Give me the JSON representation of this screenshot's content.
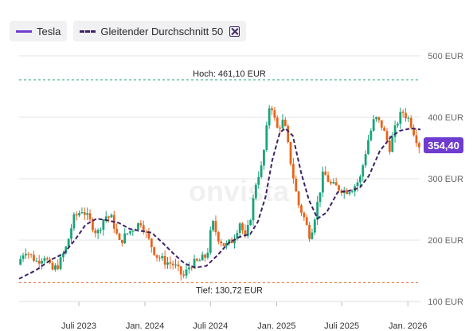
{
  "legend": {
    "series_label": "Tesla",
    "ma_label": "Gleitender Durchschnitt 50"
  },
  "watermark": "onvista",
  "price_badge": "354,40",
  "colors": {
    "up": "#1aa37a",
    "down": "#e8641b",
    "line": "#6e3ccf",
    "ma": "#3d2266",
    "high": "#1aa37a",
    "low": "#e8641b",
    "badge": "#6e3ccf"
  },
  "chart_data": {
    "type": "candlestick",
    "title": "",
    "y_unit": "EUR",
    "ylim": [
      100,
      500
    ],
    "y_ticks": [
      {
        "value": 500,
        "label": "500 EUR"
      },
      {
        "value": 400,
        "label": "400 EUR"
      },
      {
        "value": 300,
        "label": "300 EUR"
      },
      {
        "value": 200,
        "label": "200 EUR"
      },
      {
        "value": 100,
        "label": "100 EUR"
      }
    ],
    "xlim": [
      "2023-01-16",
      "2026-02-05"
    ],
    "x_ticks": [
      {
        "date": "2023-07-01",
        "label": "Juli 2023"
      },
      {
        "date": "2024-01-01",
        "label": "Jan. 2024"
      },
      {
        "date": "2024-07-01",
        "label": "Juli 2024"
      },
      {
        "date": "2025-01-01",
        "label": "Jan. 2025"
      },
      {
        "date": "2025-07-01",
        "label": "Juli 2025"
      },
      {
        "date": "2026-01-01",
        "label": "Jan. 2026"
      }
    ],
    "high": {
      "value": 461.1,
      "label": "Hoch: 461,10 EUR"
    },
    "low": {
      "value": 130.72,
      "label": "Tief: 130,72 EUR"
    },
    "last": 354.4,
    "price_path": [
      [
        "2023-01-16",
        160
      ],
      [
        "2023-02-05",
        185
      ],
      [
        "2023-02-20",
        175
      ],
      [
        "2023-03-10",
        165
      ],
      [
        "2023-04-01",
        175
      ],
      [
        "2023-04-20",
        150
      ],
      [
        "2023-05-10",
        160
      ],
      [
        "2023-06-01",
        190
      ],
      [
        "2023-06-20",
        235
      ],
      [
        "2023-07-15",
        250
      ],
      [
        "2023-08-05",
        230
      ],
      [
        "2023-08-25",
        210
      ],
      [
        "2023-09-15",
        240
      ],
      [
        "2023-10-05",
        235
      ],
      [
        "2023-10-25",
        195
      ],
      [
        "2023-11-15",
        210
      ],
      [
        "2023-12-05",
        220
      ],
      [
        "2023-12-25",
        230
      ],
      [
        "2024-01-15",
        200
      ],
      [
        "2024-02-05",
        175
      ],
      [
        "2024-03-01",
        165
      ],
      [
        "2024-03-25",
        160
      ],
      [
        "2024-04-20",
        140
      ],
      [
        "2024-05-10",
        160
      ],
      [
        "2024-06-01",
        165
      ],
      [
        "2024-06-25",
        175
      ],
      [
        "2024-07-10",
        230
      ],
      [
        "2024-07-25",
        205
      ],
      [
        "2024-08-15",
        190
      ],
      [
        "2024-09-05",
        200
      ],
      [
        "2024-09-25",
        230
      ],
      [
        "2024-10-10",
        200
      ],
      [
        "2024-10-25",
        240
      ],
      [
        "2024-11-10",
        300
      ],
      [
        "2024-11-25",
        320
      ],
      [
        "2024-12-10",
        390
      ],
      [
        "2024-12-18",
        430
      ],
      [
        "2025-01-05",
        380
      ],
      [
        "2025-01-25",
        395
      ],
      [
        "2025-02-15",
        320
      ],
      [
        "2025-03-05",
        260
      ],
      [
        "2025-03-20",
        240
      ],
      [
        "2025-04-08",
        205
      ],
      [
        "2025-04-25",
        250
      ],
      [
        "2025-05-15",
        310
      ],
      [
        "2025-06-05",
        290
      ],
      [
        "2025-06-25",
        285
      ],
      [
        "2025-07-15",
        280
      ],
      [
        "2025-08-05",
        285
      ],
      [
        "2025-08-25",
        300
      ],
      [
        "2025-09-15",
        360
      ],
      [
        "2025-10-05",
        400
      ],
      [
        "2025-10-25",
        385
      ],
      [
        "2025-11-15",
        350
      ],
      [
        "2025-12-05",
        390
      ],
      [
        "2025-12-20",
        410
      ],
      [
        "2026-01-10",
        395
      ],
      [
        "2026-01-25",
        370
      ],
      [
        "2026-02-05",
        354.4
      ]
    ],
    "ma_path": [
      [
        "2023-01-16",
        137
      ],
      [
        "2023-03-01",
        150
      ],
      [
        "2023-04-15",
        168
      ],
      [
        "2023-05-20",
        178
      ],
      [
        "2023-06-20",
        200
      ],
      [
        "2023-07-20",
        225
      ],
      [
        "2023-08-20",
        235
      ],
      [
        "2023-09-20",
        232
      ],
      [
        "2023-10-20",
        228
      ],
      [
        "2023-11-20",
        218
      ],
      [
        "2023-12-20",
        215
      ],
      [
        "2024-01-20",
        212
      ],
      [
        "2024-02-20",
        195
      ],
      [
        "2024-03-20",
        178
      ],
      [
        "2024-04-20",
        162
      ],
      [
        "2024-05-20",
        155
      ],
      [
        "2024-06-20",
        158
      ],
      [
        "2024-07-20",
        175
      ],
      [
        "2024-08-20",
        195
      ],
      [
        "2024-09-20",
        205
      ],
      [
        "2024-10-20",
        210
      ],
      [
        "2024-11-10",
        230
      ],
      [
        "2024-12-01",
        270
      ],
      [
        "2024-12-20",
        330
      ],
      [
        "2025-01-10",
        375
      ],
      [
        "2025-01-25",
        382
      ],
      [
        "2025-02-15",
        370
      ],
      [
        "2025-03-10",
        310
      ],
      [
        "2025-04-01",
        265
      ],
      [
        "2025-04-25",
        235
      ],
      [
        "2025-05-20",
        245
      ],
      [
        "2025-06-20",
        278
      ],
      [
        "2025-07-20",
        280
      ],
      [
        "2025-08-20",
        285
      ],
      [
        "2025-09-15",
        305
      ],
      [
        "2025-10-15",
        345
      ],
      [
        "2025-11-15",
        368
      ],
      [
        "2025-12-10",
        378
      ],
      [
        "2026-01-10",
        382
      ],
      [
        "2026-02-05",
        380
      ]
    ]
  }
}
